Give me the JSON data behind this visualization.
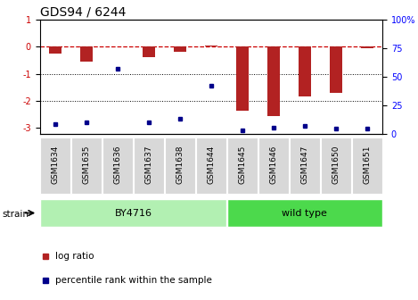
{
  "title": "GDS94 / 6244",
  "samples": [
    "GSM1634",
    "GSM1635",
    "GSM1636",
    "GSM1637",
    "GSM1638",
    "GSM1644",
    "GSM1645",
    "GSM1646",
    "GSM1647",
    "GSM1650",
    "GSM1651"
  ],
  "log_ratio": [
    -0.25,
    -0.55,
    0.0,
    -0.38,
    -0.18,
    0.05,
    -2.35,
    -2.55,
    -1.85,
    -1.7,
    -0.05
  ],
  "percentile": [
    8,
    10,
    57,
    10,
    13,
    42,
    3,
    5,
    7,
    4,
    4
  ],
  "by4716_count": 6,
  "wild_type_count": 5,
  "by4716_label": "BY4716",
  "wild_type_label": "wild type",
  "by4716_color": "#b2f0b2",
  "wild_type_color": "#4cd94c",
  "bar_color": "#b22222",
  "dot_color": "#00008b",
  "zero_line_color": "#cc0000",
  "ylim_left": [
    -3.2,
    1.0
  ],
  "ylim_right": [
    0,
    100
  ],
  "yticks_left": [
    1,
    0,
    -1,
    -2,
    -3
  ],
  "yticks_right": [
    100,
    75,
    50,
    25,
    0
  ],
  "ylabel_right_labels": [
    "100%",
    "75",
    "50",
    "25",
    "0"
  ],
  "legend_red_label": "log ratio",
  "legend_blue_label": "percentile rank within the sample",
  "strain_label": "strain",
  "tick_label_fontsize": 7,
  "title_fontsize": 10,
  "bar_width": 0.4,
  "xtick_fontsize": 6.5
}
